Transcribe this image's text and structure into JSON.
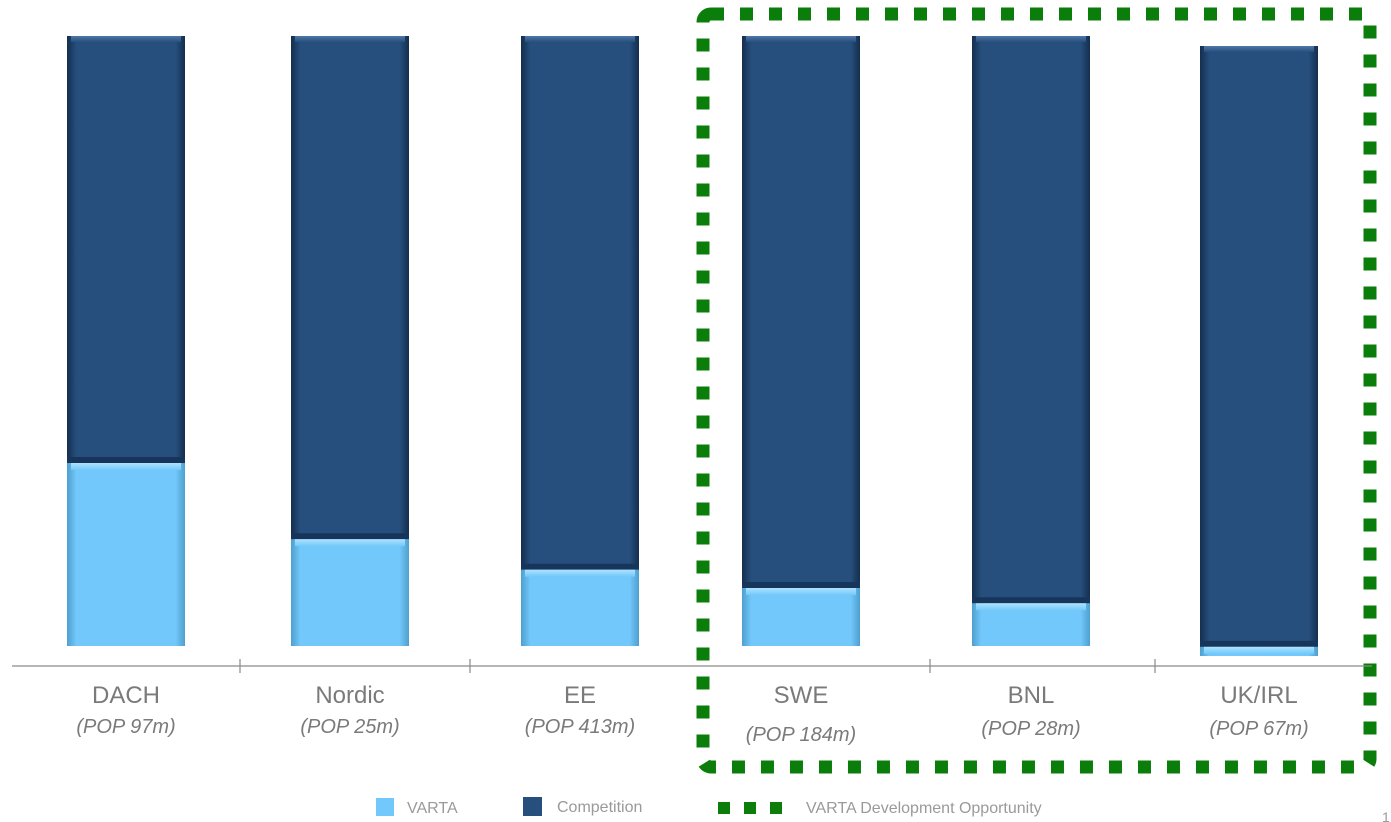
{
  "chart_data": {
    "type": "bar",
    "stacked": true,
    "percent_stacked": true,
    "categories": [
      {
        "name": "DACH",
        "population": "(POP 97m)"
      },
      {
        "name": "Nordic",
        "population": "(POP 25m)"
      },
      {
        "name": "EE",
        "population": "(POP 413m)"
      },
      {
        "name": "SWE",
        "population": "(POP 184m)"
      },
      {
        "name": "BNL",
        "population": "(POP 28m)"
      },
      {
        "name": "UK/IRL",
        "population": "(POP 67m)"
      }
    ],
    "series": [
      {
        "name": "VARTA",
        "color": "#72c8fa",
        "values": [
          30,
          17.5,
          12.5,
          9.5,
          7,
          1.5
        ]
      },
      {
        "name": "Competition",
        "color": "#264f7d",
        "values": [
          70,
          82.5,
          87.5,
          90.5,
          93,
          98.5
        ]
      }
    ],
    "ylim": [
      0,
      100
    ],
    "grid": false,
    "highlight": {
      "label": "VARTA Development Opportunity",
      "color": "#0a7d0a",
      "categories": [
        "SWE",
        "BNL",
        "UK/IRL"
      ]
    },
    "legend": {
      "position": "bottom",
      "items": [
        {
          "label": "VARTA",
          "color": "#72c8fa",
          "icon": "square-swatch-icon"
        },
        {
          "label": "Competition",
          "color": "#264f7d",
          "icon": "square-swatch-icon"
        },
        {
          "label": "VARTA Development Opportunity",
          "color": "#0a7d0a",
          "icon": "dashed-line-icon"
        }
      ]
    }
  },
  "page_number": "1"
}
